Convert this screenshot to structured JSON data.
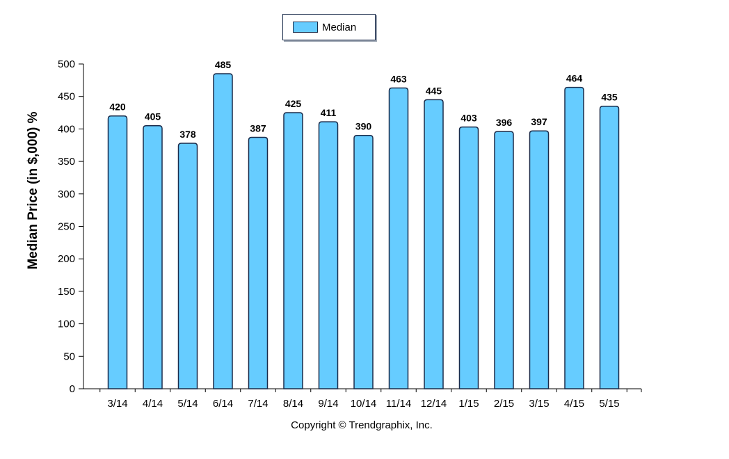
{
  "legend": {
    "label": "Median",
    "color": "#66ccff"
  },
  "footer": {
    "copyright": "Copyright © Trendgraphix, Inc."
  },
  "chart_data": {
    "type": "bar",
    "categories": [
      "3/14",
      "4/14",
      "5/14",
      "6/14",
      "7/14",
      "8/14",
      "9/14",
      "10/14",
      "11/14",
      "12/14",
      "1/15",
      "2/15",
      "3/15",
      "4/15",
      "5/15"
    ],
    "series": [
      {
        "name": "Median",
        "values": [
          420,
          405,
          378,
          485,
          387,
          425,
          411,
          390,
          463,
          445,
          403,
          396,
          397,
          464,
          435
        ]
      }
    ],
    "ylabel": "Median Price (in $,000) %",
    "xlabel": "",
    "ylim": [
      0,
      500
    ],
    "yticks": [
      0,
      50,
      100,
      150,
      200,
      250,
      300,
      350,
      400,
      450,
      500
    ],
    "legend_position": "top-center",
    "grid": false,
    "bar_color": "#66ccff",
    "bar_outline": "#1a2b4a"
  }
}
